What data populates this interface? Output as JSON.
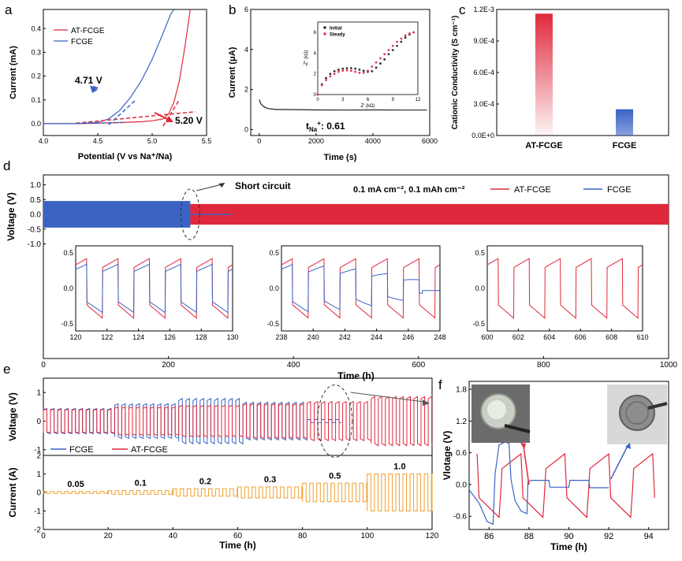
{
  "colors": {
    "red": "#e0283c",
    "blue": "#3b63c4",
    "orange": "#f0a030",
    "dark": "#222222",
    "inset_dark": "#333333",
    "inset_red": "#e23a5a"
  },
  "panel_letters": [
    "a",
    "b",
    "c",
    "d",
    "e",
    "f"
  ],
  "chart_data": [
    {
      "id": "a",
      "type": "line",
      "xlabel": "Potential (V vs Na⁺/Na)",
      "ylabel": "Current (mA)",
      "xlim": [
        4.0,
        5.5
      ],
      "ylim": [
        -0.05,
        0.48
      ],
      "xticks": [
        4.0,
        4.5,
        5.0,
        5.5
      ],
      "yticks": [
        0.0,
        0.1,
        0.2,
        0.3,
        0.4
      ],
      "xtick_labels": [
        "4.0",
        "4.5",
        "5.0",
        "5.5"
      ],
      "ytick_labels": [
        "0.0",
        "0.1",
        "0.2",
        "0.3",
        "0.4"
      ],
      "legend": [
        "AT-FCGE",
        "FCGE"
      ],
      "legend_position": "top-left",
      "series": [
        {
          "name": "AT-FCGE",
          "color": "red",
          "x": [
            4.0,
            4.3,
            4.6,
            4.9,
            5.0,
            5.1,
            5.15,
            5.2,
            5.25,
            5.3,
            5.35
          ],
          "y": [
            0,
            0,
            0.003,
            0.008,
            0.012,
            0.02,
            0.04,
            0.09,
            0.18,
            0.32,
            0.48
          ]
        },
        {
          "name": "FCGE",
          "color": "blue",
          "x": [
            4.0,
            4.3,
            4.5,
            4.6,
            4.7,
            4.8,
            4.9,
            5.0,
            5.1,
            5.17,
            5.2
          ],
          "y": [
            0,
            0,
            0.005,
            0.02,
            0.055,
            0.11,
            0.18,
            0.27,
            0.38,
            0.46,
            0.48
          ]
        }
      ],
      "annotations": [
        {
          "text": "4.71 V",
          "color": "blue"
        },
        {
          "text": "5.20 V",
          "color": "red"
        }
      ]
    },
    {
      "id": "b",
      "type": "line",
      "xlabel": "Time (s)",
      "ylabel": "Current (μA)",
      "xlim": [
        -300,
        6000
      ],
      "ylim": [
        -0.3,
        6
      ],
      "xticks": [
        0,
        2000,
        4000,
        6000
      ],
      "yticks": [
        0,
        2,
        4,
        6
      ],
      "xtick_labels": [
        "0",
        "2000",
        "4000",
        "6000"
      ],
      "ytick_labels": [
        "0",
        "2",
        "4",
        "6"
      ],
      "series": [
        {
          "color": "dark",
          "x": [
            0,
            50,
            150,
            300,
            600,
            1000,
            2000,
            3000,
            4000,
            5000,
            5900
          ],
          "y": [
            1.5,
            1.3,
            1.15,
            1.05,
            1.0,
            1.0,
            0.98,
            0.97,
            0.98,
            0.97,
            0.97
          ]
        }
      ],
      "annotation": "t",
      "annotation_sub": "Na",
      "annotation_sup": "+",
      "annotation_value": ":  0.61",
      "inset": {
        "xlabel": "Z' (kΩ)",
        "ylabel": "-Z'' (kΩ)",
        "xlim": [
          0,
          12
        ],
        "ylim": [
          0,
          7
        ],
        "xticks": [
          0,
          3,
          6,
          9,
          12
        ],
        "yticks": [
          0,
          2,
          4,
          6
        ],
        "xtick_labels": [
          "0",
          "3",
          "6",
          "9",
          "12"
        ],
        "ytick_labels": [
          "0",
          "2",
          "4",
          "6"
        ],
        "legend": [
          "Initial",
          "Steady"
        ],
        "series": [
          {
            "name": "Initial",
            "color": "inset_dark",
            "x": [
              0,
              0.5,
              1,
              1.5,
              2,
              2.5,
              3,
              3.5,
              4,
              4.5,
              5,
              5.5,
              6,
              6.5,
              7,
              7.5,
              8,
              8.5,
              9,
              9.5,
              10,
              10.5,
              11,
              11.5
            ],
            "y": [
              0,
              1.0,
              1.6,
              2.0,
              2.25,
              2.4,
              2.5,
              2.55,
              2.55,
              2.5,
              2.4,
              2.3,
              2.2,
              2.25,
              2.6,
              3.0,
              3.4,
              3.9,
              4.3,
              4.7,
              5.1,
              5.5,
              5.8,
              6.0
            ]
          },
          {
            "name": "Steady",
            "color": "inset_red",
            "x": [
              0,
              0.5,
              1,
              1.5,
              2,
              2.5,
              3,
              3.5,
              4,
              4.5,
              5,
              5.5,
              6,
              6.5,
              7,
              7.5,
              8,
              8.5,
              9,
              9.5,
              10,
              10.5,
              11,
              11.5
            ],
            "y": [
              0,
              0.9,
              1.4,
              1.75,
              2.0,
              2.2,
              2.3,
              2.35,
              2.3,
              2.2,
              2.1,
              2.1,
              2.3,
              2.7,
              3.1,
              3.5,
              3.9,
              4.3,
              4.7,
              5.1,
              5.4,
              5.7,
              5.9,
              6.0
            ]
          }
        ]
      }
    },
    {
      "id": "c",
      "type": "bar",
      "ylabel": "Cationic Conductivity (S cm⁻¹)",
      "categories": [
        "AT-FCGE",
        "FCGE"
      ],
      "values": [
        0.00116,
        0.00025
      ],
      "ylim": [
        0,
        0.0012
      ],
      "yticks": [
        0,
        0.0003,
        0.0006,
        0.0009,
        0.0012
      ],
      "ytick_labels": [
        "0.0E+0",
        "3.0E-4",
        "6.0E-4",
        "9.0E-4",
        "1.2E-3"
      ],
      "bar_colors": [
        "red",
        "blue"
      ]
    },
    {
      "id": "d",
      "type": "line",
      "xlabel": "Time (h)",
      "ylabel": "Voltage (V)",
      "xlim": [
        0,
        1000
      ],
      "ylim": [
        -1.2,
        1.2
      ],
      "xticks": [
        0,
        200,
        400,
        600,
        800,
        1000
      ],
      "yticks": [
        -1.0,
        -0.5,
        0.0,
        0.5,
        1.0
      ],
      "xtick_labels": [
        "0",
        "200",
        "400",
        "600",
        "800",
        "1000"
      ],
      "ytick_labels": [
        "-1.0",
        "-0.5",
        "0.0",
        "0.5",
        "1.0"
      ],
      "annotation": "Short circuit",
      "condition": "0.1 mA cm⁻², 0.1 mAh cm⁻²",
      "legend": [
        "AT-FCGE",
        "FCGE"
      ],
      "legend_position": "top-right",
      "series": [
        {
          "name": "AT-FCGE",
          "color": "red",
          "x": [
            0,
            1000
          ],
          "ymin": -0.35,
          "ymax": 0.35
        },
        {
          "name": "FCGE",
          "color": "blue",
          "x": [
            0,
            235
          ],
          "ymin": -0.45,
          "ymax": 0.45,
          "after_short": {
            "x": [
              235,
              300
            ],
            "y": 0.0
          }
        }
      ],
      "insets": [
        {
          "xlim": [
            120,
            130
          ],
          "xticks": [
            120,
            122,
            124,
            126,
            128,
            130
          ],
          "xtick_labels": [
            "120",
            "122",
            "124",
            "126",
            "128",
            "130"
          ],
          "yticks": [
            -0.5,
            0,
            0.5
          ],
          "ytick_labels": [
            "-0.5",
            "0.0",
            "0.5"
          ],
          "red": true,
          "blue": "normal"
        },
        {
          "xlim": [
            238,
            248
          ],
          "xticks": [
            238,
            240,
            242,
            244,
            246,
            248
          ],
          "xtick_labels": [
            "238",
            "240",
            "242",
            "244",
            "246",
            "248"
          ],
          "yticks": [
            -0.5,
            0,
            0.5
          ],
          "ytick_labels": [
            "-0.5",
            "0.0",
            "0.5"
          ],
          "red": true,
          "blue": "shorting"
        },
        {
          "xlim": [
            600,
            610
          ],
          "xticks": [
            600,
            602,
            604,
            606,
            608,
            610
          ],
          "xtick_labels": [
            "600",
            "602",
            "604",
            "606",
            "608",
            "610"
          ],
          "yticks": [
            -0.5,
            0,
            0.5
          ],
          "ytick_labels": [
            "-0.5",
            "0.0",
            "0.5"
          ],
          "red": true,
          "blue": "none"
        }
      ]
    },
    {
      "id": "e",
      "type": "line",
      "xlabel": "Time (h)",
      "ylabel_top": "Voltage (V)",
      "ylabel_bottom": "Current (A)",
      "xlim": [
        0,
        120
      ],
      "xticks": [
        0,
        20,
        40,
        60,
        80,
        100,
        120
      ],
      "xtick_labels": [
        "0",
        "20",
        "40",
        "60",
        "80",
        "100",
        "120"
      ],
      "top_ylim": [
        -1.2,
        1.5
      ],
      "top_yticks": [
        -1,
        0,
        1
      ],
      "top_ytick_labels": [
        "-1",
        "0",
        "1"
      ],
      "bottom_ylim": [
        -2,
        2
      ],
      "bottom_yticks": [
        -2,
        -1,
        0,
        1,
        2
      ],
      "bottom_ytick_labels": [
        "-2",
        "-1",
        "0",
        "1",
        "2"
      ],
      "legend": [
        "FCGE",
        "AT-FCGE"
      ],
      "rate_labels": [
        "0.05",
        "0.1",
        "0.2",
        "0.3",
        "0.5",
        "1.0"
      ],
      "rate_steps": [
        {
          "from": 0,
          "to": 20,
          "current": 0.05
        },
        {
          "from": 20,
          "to": 40,
          "current": 0.1
        },
        {
          "from": 40,
          "to": 60,
          "current": 0.2
        },
        {
          "from": 60,
          "to": 80,
          "current": 0.3
        },
        {
          "from": 80,
          "to": 100,
          "current": 0.5
        },
        {
          "from": 100,
          "to": 120,
          "current": 1.0
        }
      ]
    },
    {
      "id": "f",
      "type": "line",
      "xlabel": "Time (h)",
      "ylabel": "Vlotage (V)",
      "xlim": [
        85,
        95
      ],
      "ylim": [
        -0.85,
        1.95
      ],
      "xticks": [
        86,
        88,
        90,
        92,
        94
      ],
      "yticks": [
        -0.6,
        0.0,
        0.6,
        1.2,
        1.8
      ],
      "xtick_labels": [
        "86",
        "88",
        "90",
        "92",
        "94"
      ],
      "ytick_labels": [
        "-0.6",
        "0.0",
        "0.6",
        "1.2",
        "1.8"
      ]
    }
  ]
}
